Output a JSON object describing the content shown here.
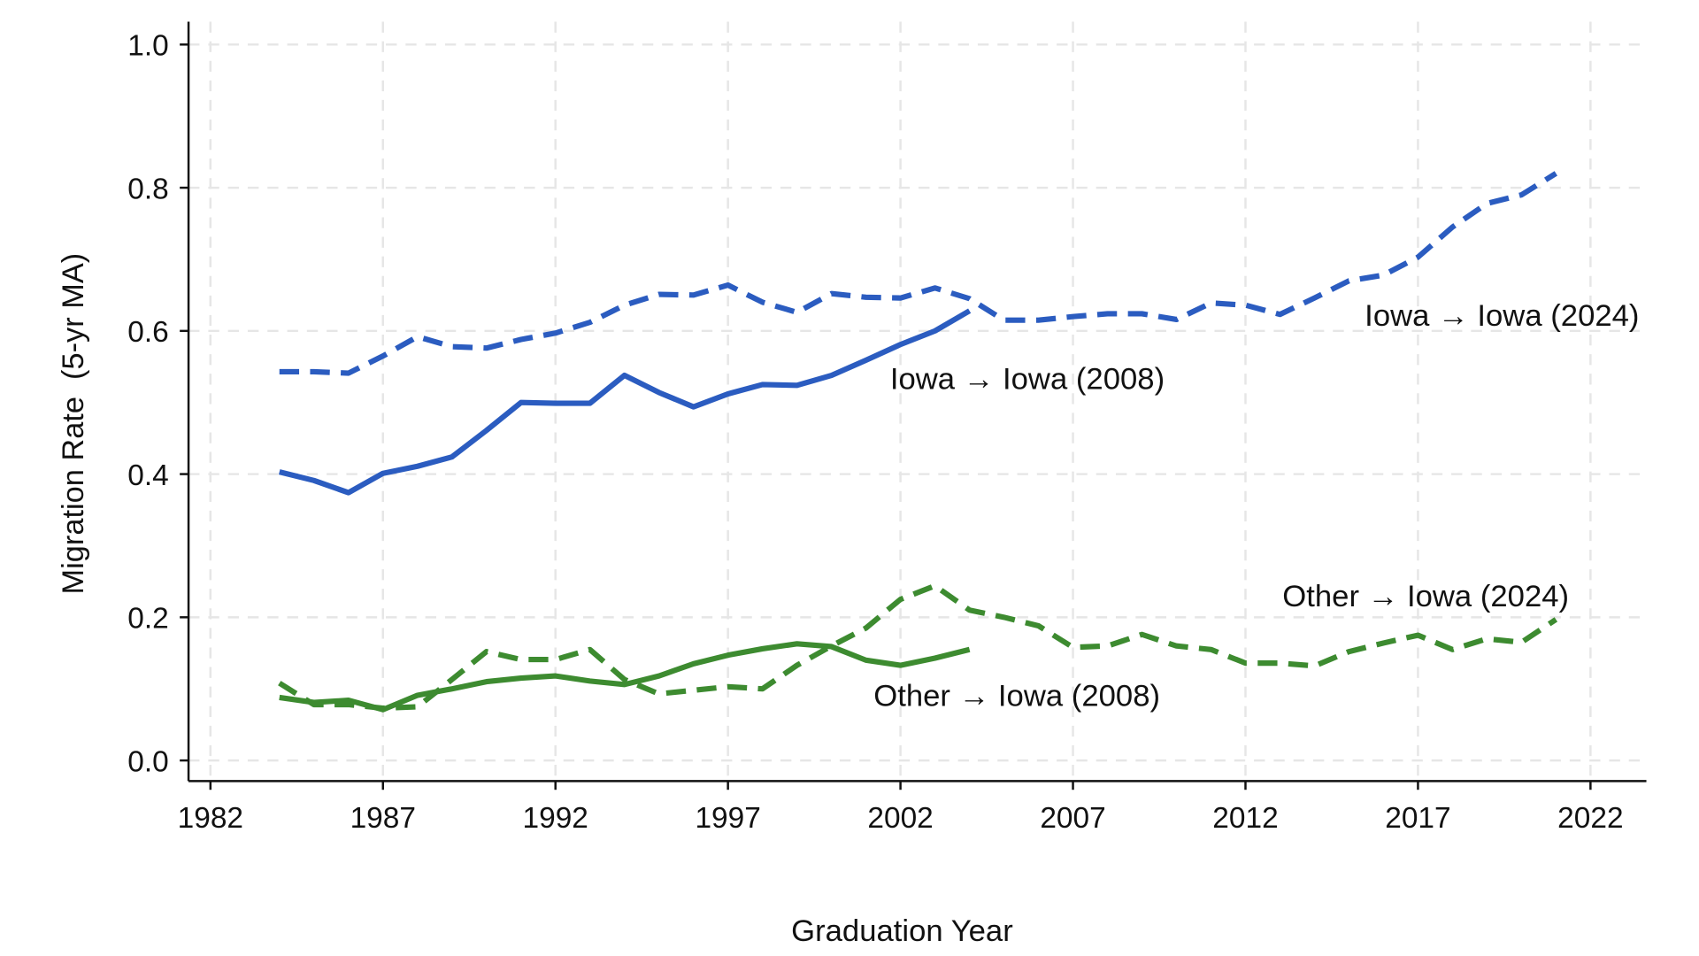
{
  "chart_data": {
    "type": "line",
    "title": "",
    "xlabel": "Graduation Year",
    "ylabel": "Migration Rate  (5-yr MA)",
    "xlim": [
      1982,
      2023
    ],
    "ylim": [
      0.0,
      1.0
    ],
    "xticks": [
      "1982",
      "1987",
      "1992",
      "1997",
      "2002",
      "2007",
      "2012",
      "2017",
      "2022"
    ],
    "yticks": [
      "0.0",
      "0.2",
      "0.4",
      "0.6",
      "0.8",
      "1.0"
    ],
    "grid": true,
    "legend": "none (inline labels)",
    "series": [
      {
        "name": "Iowa → Iowa (2024)",
        "color": "#2b5cc0",
        "style": "dashed",
        "x": [
          1984,
          1985,
          1986,
          1987,
          1988,
          1989,
          1990,
          1991,
          1992,
          1993,
          1994,
          1995,
          1996,
          1997,
          1998,
          1999,
          2000,
          2001,
          2002,
          2003,
          2004,
          2005,
          2006,
          2007,
          2008,
          2009,
          2010,
          2011,
          2012,
          2013,
          2014,
          2015,
          2016,
          2017,
          2018,
          2019,
          2020,
          2021
        ],
        "y": [
          0.543,
          0.543,
          0.541,
          0.565,
          0.592,
          0.578,
          0.576,
          0.588,
          0.597,
          0.612,
          0.636,
          0.651,
          0.65,
          0.664,
          0.64,
          0.626,
          0.652,
          0.647,
          0.646,
          0.66,
          0.645,
          0.615,
          0.615,
          0.62,
          0.624,
          0.624,
          0.616,
          0.639,
          0.636,
          0.623,
          0.646,
          0.67,
          0.678,
          0.703,
          0.745,
          0.778,
          0.79,
          0.82
        ]
      },
      {
        "name": "Iowa → Iowa (2008)",
        "color": "#2b5cc0",
        "style": "solid",
        "x": [
          1984,
          1985,
          1986,
          1987,
          1988,
          1989,
          1990,
          1991,
          1992,
          1993,
          1994,
          1995,
          1996,
          1997,
          1998,
          1999,
          2000,
          2001,
          2002,
          2003,
          2004
        ],
        "y": [
          0.403,
          0.391,
          0.374,
          0.401,
          0.411,
          0.424,
          0.461,
          0.5,
          0.499,
          0.499,
          0.538,
          0.514,
          0.494,
          0.512,
          0.525,
          0.524,
          0.538,
          0.559,
          0.581,
          0.6,
          0.628
        ]
      },
      {
        "name": "Other → Iowa (2024)",
        "color": "#3d8b30",
        "style": "dashed",
        "x": [
          1984,
          1985,
          1986,
          1987,
          1988,
          1989,
          1990,
          1991,
          1992,
          1993,
          1994,
          1995,
          1996,
          1997,
          1998,
          1999,
          2000,
          2001,
          2002,
          2003,
          2004,
          2005,
          2006,
          2007,
          2008,
          2009,
          2010,
          2011,
          2012,
          2013,
          2014,
          2015,
          2016,
          2017,
          2018,
          2019,
          2020,
          2021
        ],
        "y": [
          0.108,
          0.078,
          0.078,
          0.073,
          0.075,
          0.113,
          0.152,
          0.141,
          0.141,
          0.155,
          0.113,
          0.093,
          0.098,
          0.103,
          0.1,
          0.133,
          0.16,
          0.185,
          0.225,
          0.244,
          0.21,
          0.2,
          0.188,
          0.158,
          0.16,
          0.176,
          0.16,
          0.155,
          0.136,
          0.136,
          0.132,
          0.152,
          0.164,
          0.175,
          0.155,
          0.17,
          0.165,
          0.197
        ]
      },
      {
        "name": "Other → Iowa (2008)",
        "color": "#3d8b30",
        "style": "solid",
        "x": [
          1984,
          1985,
          1986,
          1987,
          1988,
          1989,
          1990,
          1991,
          1992,
          1993,
          1994,
          1995,
          1996,
          1997,
          1998,
          1999,
          2000,
          2001,
          2002,
          2003,
          2004
        ],
        "y": [
          0.088,
          0.081,
          0.084,
          0.071,
          0.091,
          0.1,
          0.11,
          0.115,
          0.118,
          0.111,
          0.106,
          0.118,
          0.135,
          0.147,
          0.156,
          0.163,
          0.159,
          0.14,
          0.133,
          0.143,
          0.155
        ]
      }
    ]
  }
}
